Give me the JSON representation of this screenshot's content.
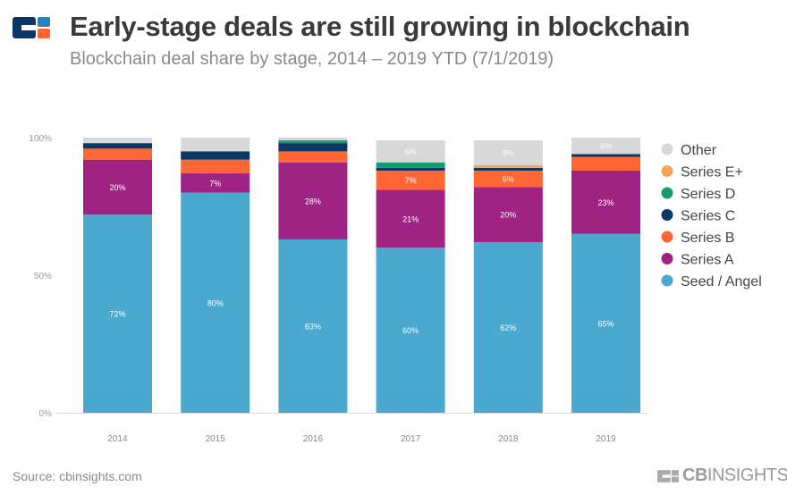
{
  "header": {
    "title": "Early-stage deals are still growing in blockchain",
    "subtitle": "Blockchain deal share by stage, 2014 – 2019 YTD (7/1/2019)"
  },
  "footer": {
    "source": "Source: cbinsights.com",
    "brand_bold": "CB",
    "brand_rest": "INSIGHTS"
  },
  "chart_data": {
    "type": "bar",
    "stacked": true,
    "categories": [
      "2014",
      "2015",
      "2016",
      "2017",
      "2018",
      "2019"
    ],
    "yticks": [
      "0%",
      "50%",
      "100%"
    ],
    "ylim": [
      0,
      100
    ],
    "legend_position": "right",
    "series": [
      {
        "name": "Seed / Angel",
        "color": "#4BA9CF",
        "values": [
          72,
          80,
          63,
          60,
          62,
          65
        ],
        "labels": [
          "72%",
          "80%",
          "63%",
          "60%",
          "62%",
          "65%"
        ]
      },
      {
        "name": "Series A",
        "color": "#9E2383",
        "values": [
          20,
          7,
          28,
          21,
          20,
          23
        ],
        "labels": [
          "20%",
          "7%",
          "28%",
          "21%",
          "20%",
          "23%"
        ]
      },
      {
        "name": "Series B",
        "color": "#FF6633",
        "values": [
          4,
          5,
          4,
          7,
          6,
          5
        ],
        "labels": [
          "",
          "",
          "",
          "7%",
          "6%",
          ""
        ]
      },
      {
        "name": "Series C",
        "color": "#0B3765",
        "values": [
          2,
          3,
          3,
          1,
          1,
          1
        ],
        "labels": [
          "",
          "",
          "",
          "",
          "",
          ""
        ]
      },
      {
        "name": "Series D",
        "color": "#159A6E",
        "values": [
          0,
          0,
          1,
          2,
          0,
          0
        ],
        "labels": [
          "",
          "",
          "",
          "",
          "",
          ""
        ]
      },
      {
        "name": "Series E+",
        "color": "#F7A35C",
        "values": [
          0,
          0,
          0,
          0,
          1,
          0
        ],
        "labels": [
          "",
          "",
          "",
          "",
          "",
          ""
        ]
      },
      {
        "name": "Other",
        "color": "#D8D8D8",
        "values": [
          2,
          5,
          1,
          8,
          9,
          6
        ],
        "labels": [
          "",
          "",
          "",
          "8%",
          "9%",
          "6%"
        ]
      }
    ]
  },
  "logo_colors": {
    "navy": "#0B3765",
    "blue": "#2A7FC1",
    "orange": "#FF6633"
  }
}
